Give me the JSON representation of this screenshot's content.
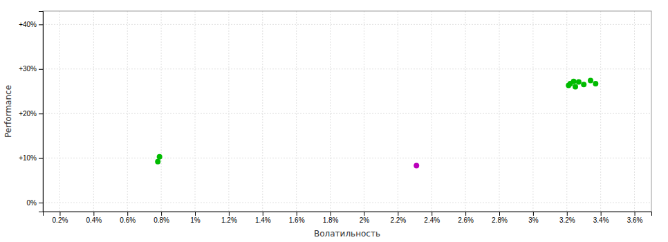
{
  "chart_data": {
    "type": "scatter",
    "xlabel": "Волатильность",
    "ylabel": "Performance",
    "xlim": [
      0.001,
      0.037
    ],
    "ylim": [
      -0.02,
      0.43
    ],
    "xticks": [
      {
        "value": 0.002,
        "label": "0.2%"
      },
      {
        "value": 0.004,
        "label": "0.4%"
      },
      {
        "value": 0.006,
        "label": "0.6%"
      },
      {
        "value": 0.008,
        "label": "0.8%"
      },
      {
        "value": 0.01,
        "label": "1%"
      },
      {
        "value": 0.012,
        "label": "1.2%"
      },
      {
        "value": 0.014,
        "label": "1.4%"
      },
      {
        "value": 0.016,
        "label": "1.6%"
      },
      {
        "value": 0.018,
        "label": "1.8%"
      },
      {
        "value": 0.02,
        "label": "2%"
      },
      {
        "value": 0.022,
        "label": "2.2%"
      },
      {
        "value": 0.024,
        "label": "2.4%"
      },
      {
        "value": 0.026,
        "label": "2.6%"
      },
      {
        "value": 0.028,
        "label": "2.8%"
      },
      {
        "value": 0.03,
        "label": "3%"
      },
      {
        "value": 0.032,
        "label": "3.2%"
      },
      {
        "value": 0.034,
        "label": "3.4%"
      },
      {
        "value": 0.036,
        "label": "3.6%"
      }
    ],
    "yticks": [
      {
        "value": 0.0,
        "label": "0%"
      },
      {
        "value": 0.1,
        "label": "+10%"
      },
      {
        "value": 0.2,
        "label": "+20%"
      },
      {
        "value": 0.3,
        "label": "+30%"
      },
      {
        "value": 0.4,
        "label": "+40%"
      }
    ],
    "grid": true,
    "series": [
      {
        "color": "#00bb00",
        "x": [
          0.0079,
          0.0078,
          0.0321,
          0.0322,
          0.0324,
          0.0325,
          0.0327,
          0.033,
          0.0334,
          0.0337
        ],
        "values": [
          0.103,
          0.092,
          0.263,
          0.267,
          0.272,
          0.26,
          0.271,
          0.265,
          0.274,
          0.267
        ]
      },
      {
        "color": "#bb00bb",
        "x": [
          0.0231
        ],
        "values": [
          0.083
        ]
      }
    ]
  }
}
